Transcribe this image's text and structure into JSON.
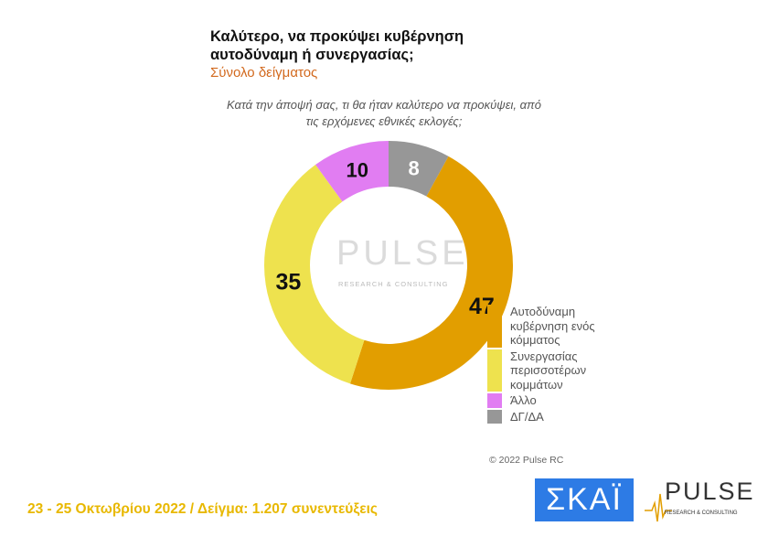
{
  "header": {
    "title_line1": "Καλύτερο, να προκύψει κυβέρνηση",
    "title_line2": "αυτοδύναμη ή συνεργασίας;",
    "subtitle": "Σύνολο δείγματος"
  },
  "question": "Κατά την άποψή σας, τι θα ήταν καλύτερο να προκύψει, από τις ερχόμενες εθνικές εκλογές;",
  "chart_data": {
    "type": "pie",
    "donut": true,
    "categories": [
      "ΔΓ/ΔΑ",
      "Αυτοδύναμη κυβέρνηση ενός κόμματος",
      "Συνεργασίας περισσοτέρων κομμάτων",
      "Άλλο"
    ],
    "values": [
      8,
      47,
      35,
      10
    ],
    "colors": [
      "#979797",
      "#E29E00",
      "#EEE24E",
      "#E17DF2"
    ],
    "legend_placement": "right",
    "legend": [
      {
        "label": "Αυτοδύναμη κυβέρνηση ενός κόμματος",
        "color": "#E29E00"
      },
      {
        "label": "Συνεργασίας περισσοτέρων κομμάτων",
        "color": "#EEE24E"
      },
      {
        "label": "Άλλο",
        "color": "#E17DF2"
      },
      {
        "label": "ΔΓ/ΔΑ",
        "color": "#979797"
      }
    ]
  },
  "watermark": {
    "word": "PULSE",
    "sub": "RESEARCH & CONSULTING"
  },
  "copyright": "© 2022 Pulse RC",
  "footer": "23 - 25  Οκτωβρίου  2022  /  Δείγμα:  1.207 συνεντεύξεις",
  "logos": {
    "skai": "ΣΚΑΪ",
    "pulse": "PULSE",
    "pulse_sub": "RESEARCH & CONSULTING"
  }
}
